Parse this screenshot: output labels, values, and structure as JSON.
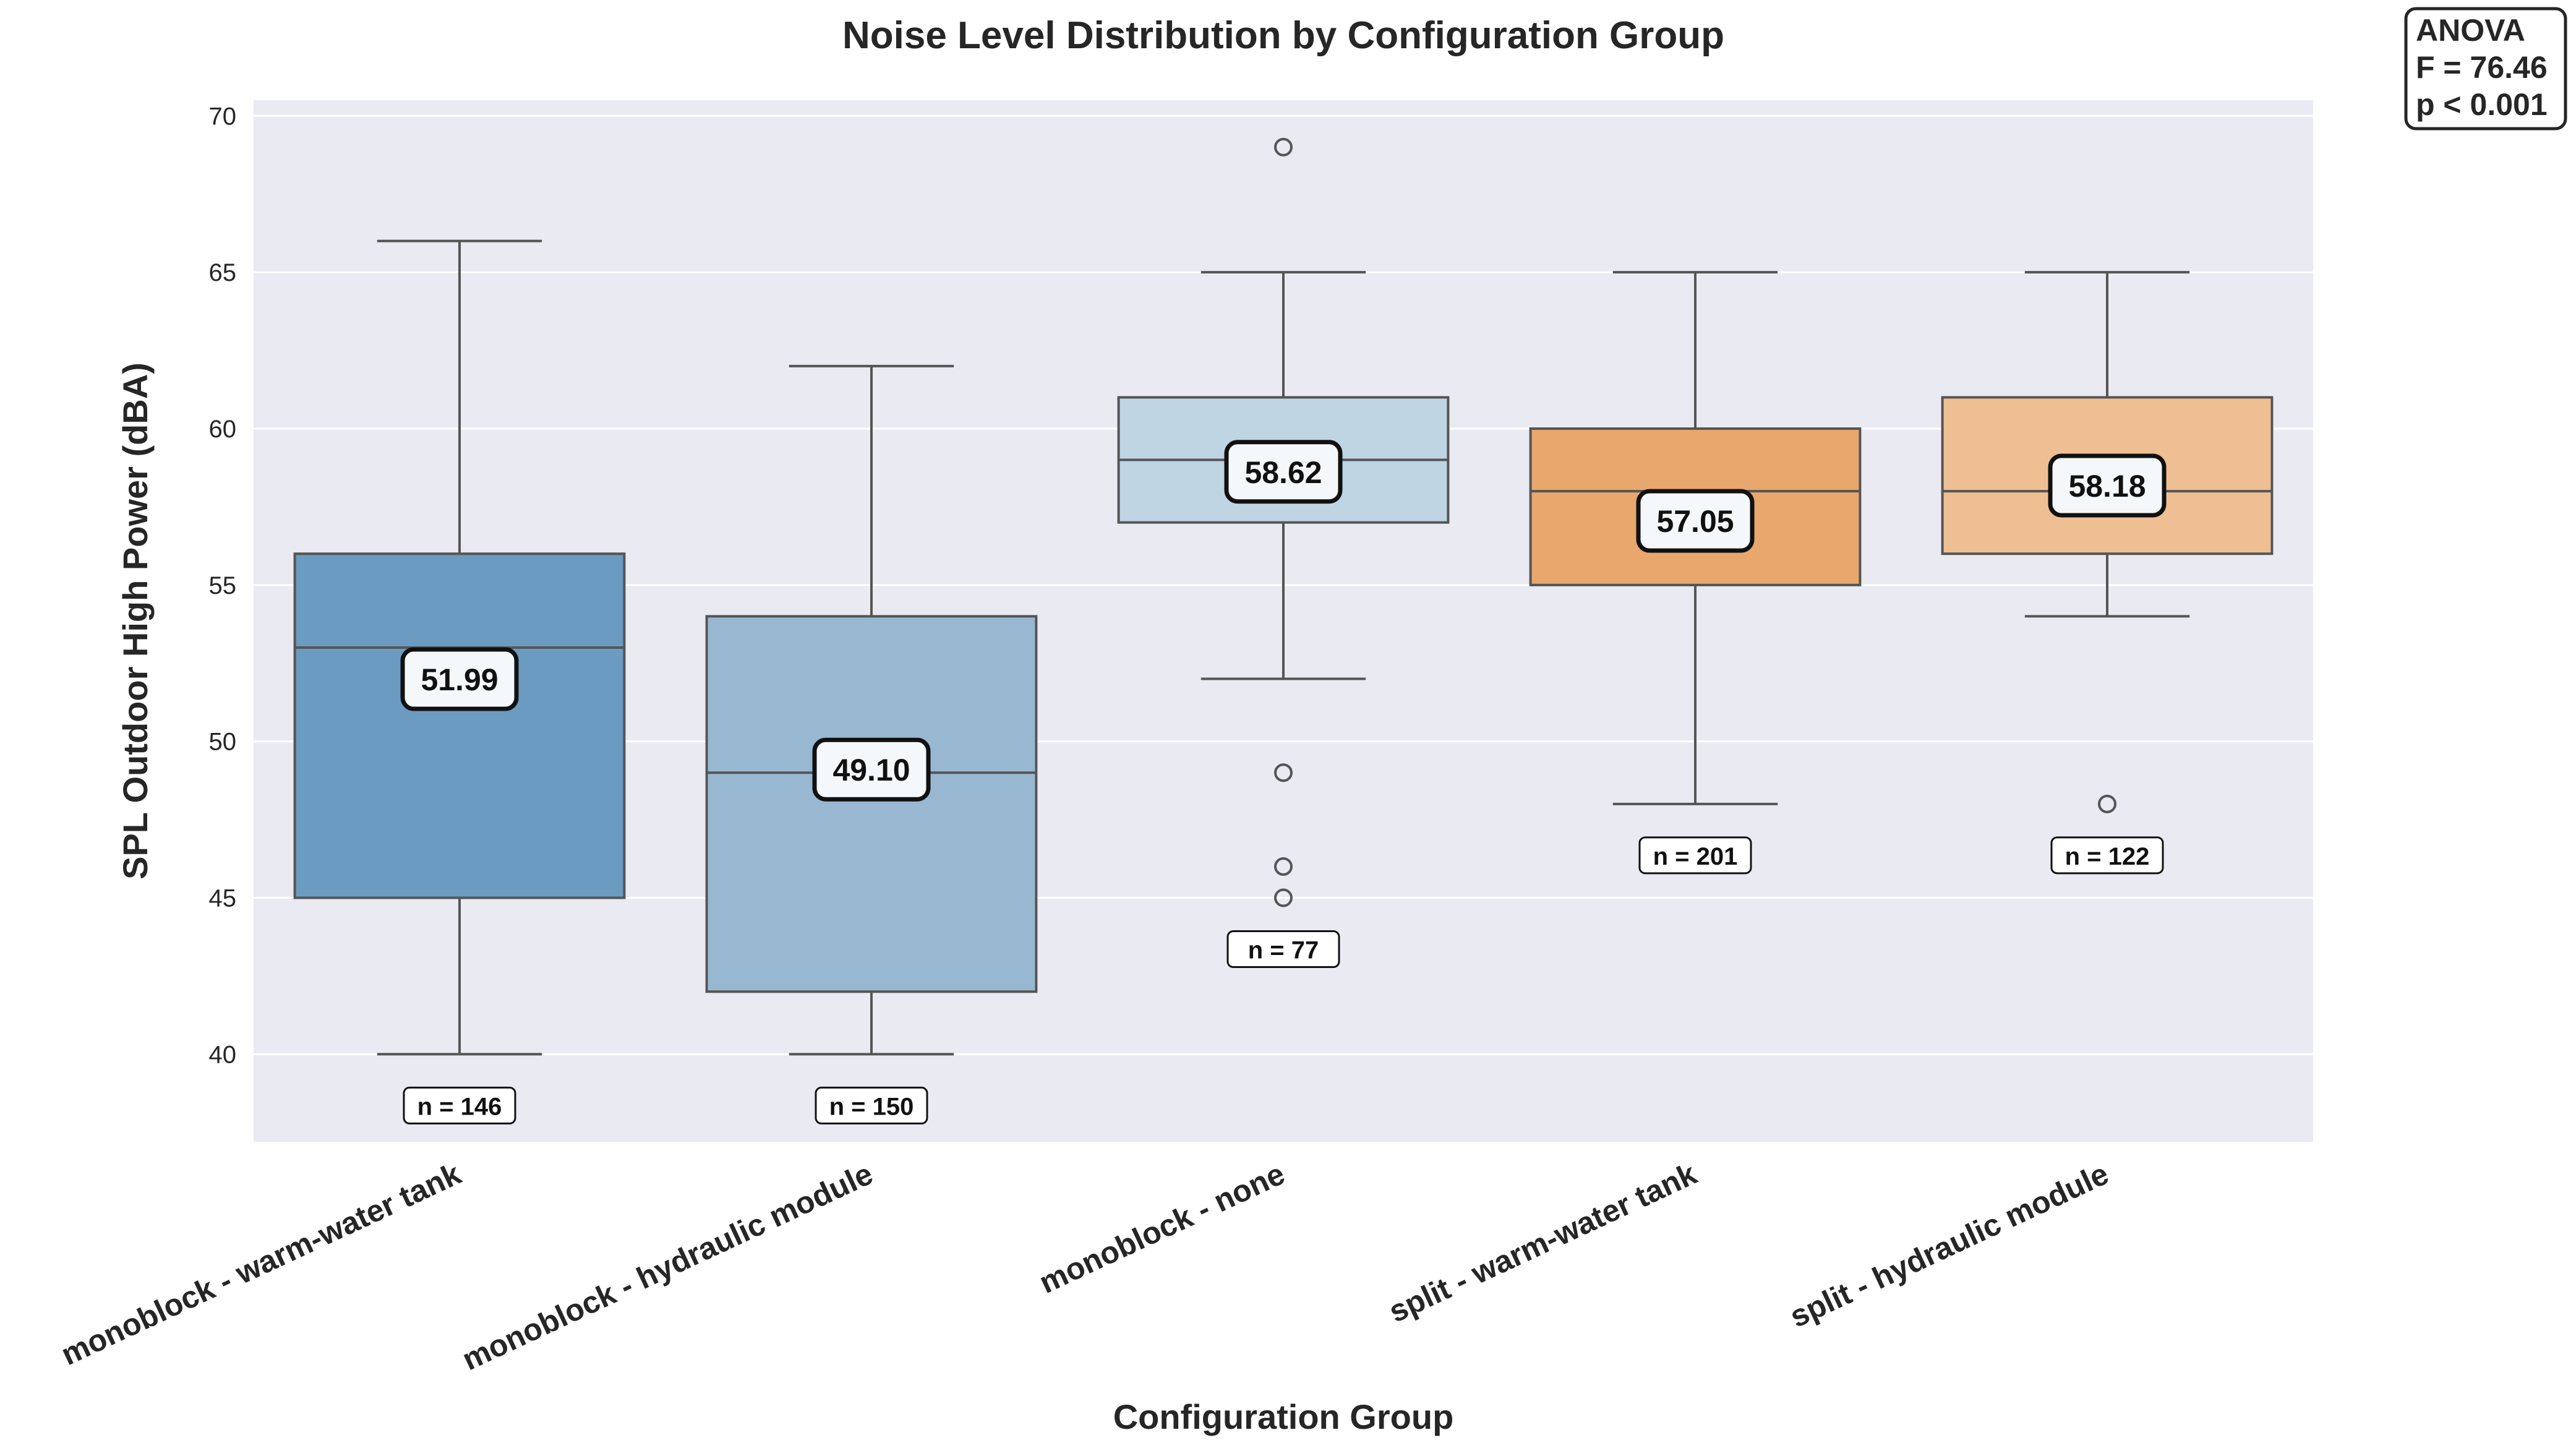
{
  "chart_data": {
    "type": "box",
    "title": "Noise Level Distribution by Configuration Group",
    "xlabel": "Configuration Group",
    "ylabel": "SPL Outdoor High Power (dBA)",
    "ylim": [
      37.2,
      70.5
    ],
    "yticks": [
      40,
      45,
      50,
      55,
      60,
      65,
      70
    ],
    "grid": true,
    "categories": [
      "monoblock - warm-water tank",
      "monoblock - hydraulic module",
      "monoblock - none",
      "split - warm-water tank",
      "split - hydraulic module"
    ],
    "boxes": [
      {
        "category": "monoblock - warm-water tank",
        "whisker_low": 40,
        "q1": 45,
        "median": 53,
        "q3": 56,
        "whisker_high": 66,
        "mean": 51.99,
        "mean_label": "51.99",
        "n": 146,
        "n_label": "n = 146",
        "outliers": [],
        "color": "#6b9bc1"
      },
      {
        "category": "monoblock - hydraulic module",
        "whisker_low": 40,
        "q1": 42,
        "median": 49,
        "q3": 54,
        "whisker_high": 62,
        "mean": 49.1,
        "mean_label": "49.10",
        "n": 150,
        "n_label": "n = 150",
        "outliers": [],
        "color": "#98b8d1"
      },
      {
        "category": "monoblock - none",
        "whisker_low": 52,
        "q1": 57,
        "median": 59,
        "q3": 61,
        "whisker_high": 65,
        "mean": 58.62,
        "mean_label": "58.62",
        "n": 77,
        "n_label": "n = 77",
        "outliers": [
          69,
          49,
          46,
          45
        ],
        "color": "#c0d5e3"
      },
      {
        "category": "split - warm-water tank",
        "whisker_low": 48,
        "q1": 55,
        "median": 58,
        "q3": 60,
        "whisker_high": 65,
        "mean": 57.05,
        "mean_label": "57.05",
        "n": 201,
        "n_label": "n = 201",
        "outliers": [],
        "color": "#e8a76c"
      },
      {
        "category": "split - hydraulic module",
        "whisker_low": 54,
        "q1": 56,
        "median": 58,
        "q3": 61,
        "whisker_high": 65,
        "mean": 58.18,
        "mean_label": "58.18",
        "n": 122,
        "n_label": "n = 122",
        "outliers": [
          48
        ],
        "color": "#efbf94"
      }
    ],
    "annotation": {
      "lines": [
        "ANOVA",
        "F = 76.46",
        "p < 0.001"
      ]
    },
    "colors": {
      "plot_background": "#eaeaf2",
      "grid": "#ffffff",
      "box_edge": "#555555"
    }
  }
}
